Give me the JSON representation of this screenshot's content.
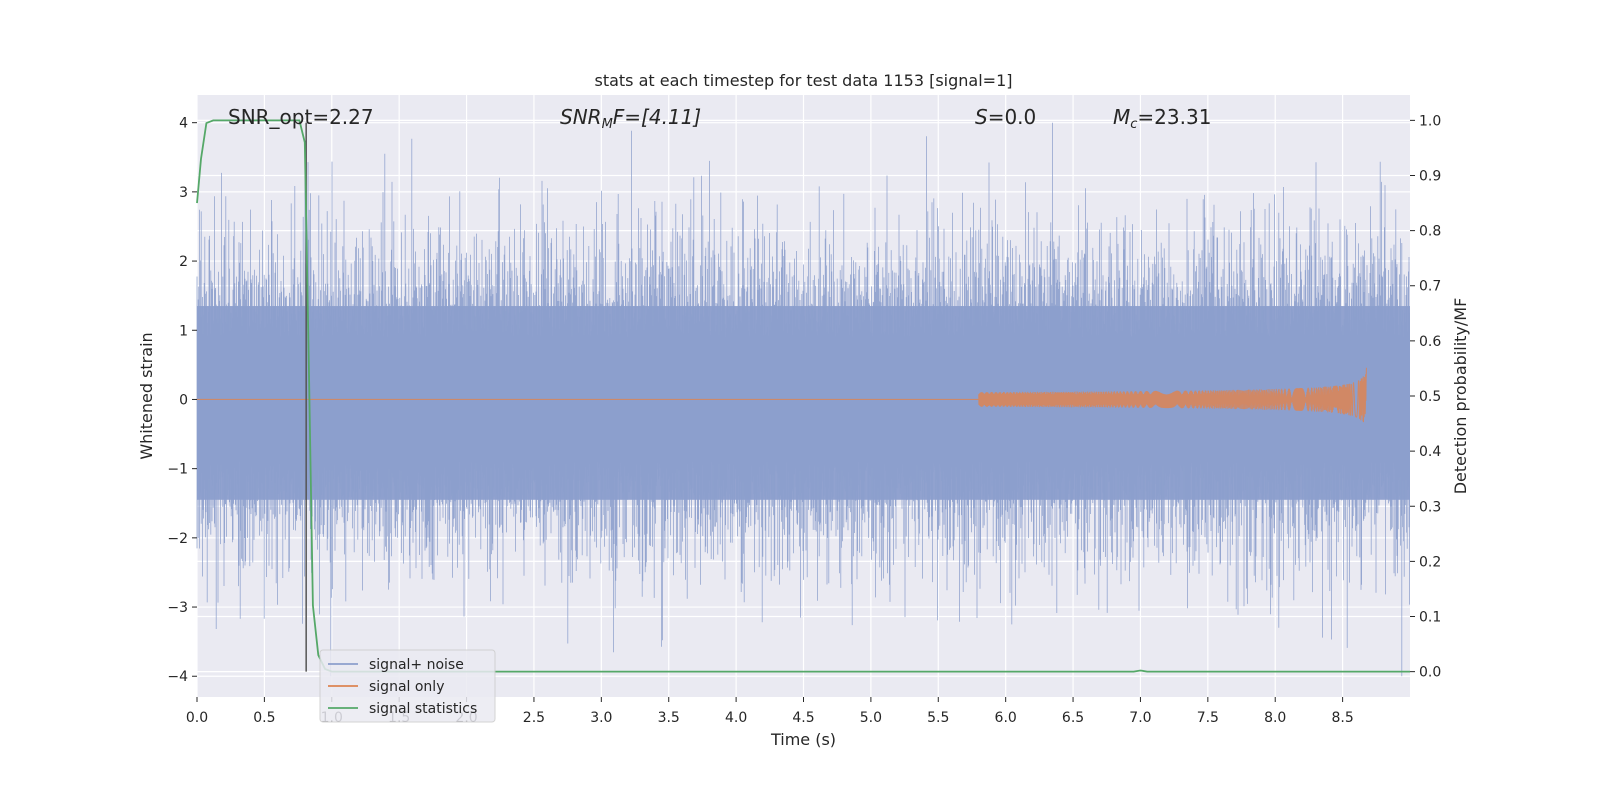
{
  "chart_data": {
    "type": "line",
    "title": "stats at each timestep for test data 1153 [signal=1]",
    "xlabel": "Time (s)",
    "ylabel": "Whitened strain",
    "ylabel_right": "Detection probability/MF",
    "xlim": [
      0.0,
      9.0
    ],
    "ylim": [
      -4.3,
      4.4
    ],
    "ylim_right": [
      -0.046,
      1.046
    ],
    "x_ticks": [
      "0.0",
      "0.5",
      "1.0",
      "1.5",
      "2.0",
      "2.5",
      "3.0",
      "3.5",
      "4.0",
      "4.5",
      "5.0",
      "5.5",
      "6.0",
      "6.5",
      "7.0",
      "7.5",
      "8.0",
      "8.5"
    ],
    "y_ticks": [
      "4",
      "3",
      "2",
      "1",
      "0",
      "−1",
      "−2",
      "−3",
      "−4"
    ],
    "y_ticks_right": [
      "1.0",
      "0.9",
      "0.8",
      "0.7",
      "0.6",
      "0.5",
      "0.4",
      "0.3",
      "0.2",
      "0.1",
      "0.0"
    ],
    "grid": true,
    "legend_position": "lower-left",
    "annotations": {
      "snr_opt": "SNR_opt=2.27",
      "snr_mf_name": "SNR",
      "snr_mf_sub": "M",
      "snr_mf_suffix": "F=[4.11]",
      "s_name": "S",
      "s_value": "=0.0",
      "mc_name": "M",
      "mc_sub": "c",
      "mc_value": "=23.31"
    },
    "vline_x": 0.81,
    "series": [
      {
        "name": "signal+ noise",
        "color": "#8c9ecc",
        "kind": "noise",
        "amplitude_typical": 1.6,
        "amplitude_peak": 4.0
      },
      {
        "name": "signal only",
        "color": "#dd8452",
        "kind": "chirp",
        "x_start": 5.8,
        "x_end": 8.68,
        "amplitude_peak": 0.55
      },
      {
        "name": "signal statistics",
        "color": "#55a868",
        "axis": "right",
        "x": [
          0.0,
          0.03,
          0.07,
          0.12,
          0.2,
          0.4,
          0.6,
          0.7,
          0.76,
          0.8,
          0.83,
          0.86,
          0.9,
          0.95,
          1.0,
          3.0,
          6.0,
          6.95,
          7.0,
          7.05,
          8.0,
          9.0
        ],
        "values": [
          0.85,
          0.93,
          0.995,
          1.0,
          1.0,
          1.0,
          1.0,
          1.0,
          1.0,
          0.96,
          0.55,
          0.12,
          0.03,
          0.005,
          0.0,
          0.0,
          0.0,
          0.0,
          0.002,
          0.0,
          0.0,
          0.0
        ]
      }
    ]
  },
  "colors": {
    "axes_bg": "#eaeaf2",
    "grid": "#ffffff",
    "vline": "#555555"
  }
}
